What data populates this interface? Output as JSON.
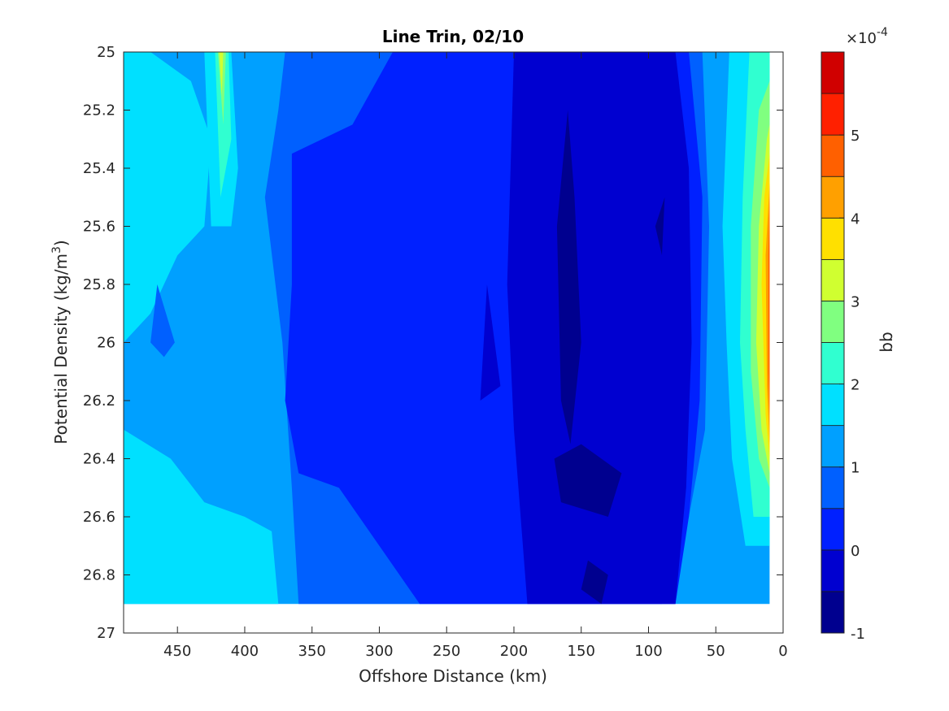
{
  "chart_data": {
    "type": "heatmap",
    "subtype": "filled-contour",
    "title": "Line Trin, 02/10",
    "xlabel": "Offshore Distance (km)",
    "ylabel_main": "Potential Density (kg/m",
    "ylabel_sup": "3",
    "ylabel_close": ")",
    "x_reversed": true,
    "y_reversed": true,
    "xlim": [
      0,
      490
    ],
    "ylim": [
      25.0,
      27.0
    ],
    "xticks": [
      450,
      400,
      350,
      300,
      250,
      200,
      150,
      100,
      50,
      0
    ],
    "xtick_labels": [
      "450",
      "400",
      "350",
      "300",
      "250",
      "200",
      "150",
      "100",
      "50",
      "0"
    ],
    "yticks": [
      25.0,
      25.2,
      25.4,
      25.6,
      25.8,
      26.0,
      26.2,
      26.4,
      26.6,
      26.8,
      27.0
    ],
    "ytick_labels": [
      "25",
      "25.2",
      "25.4",
      "25.6",
      "25.8",
      "26",
      "26.2",
      "26.4",
      "26.6",
      "26.8",
      "27"
    ],
    "data_extent": {
      "x": [
        10,
        490
      ],
      "y": [
        25.0,
        26.9
      ]
    },
    "colorbar": {
      "label": "bb",
      "exponent_prefix": "×10",
      "exponent": "-4",
      "range": [
        -1,
        6
      ],
      "ticks": [
        -1,
        0,
        1,
        2,
        3,
        4,
        5
      ],
      "tick_labels": [
        "-1",
        "0",
        "1",
        "2",
        "3",
        "4",
        "5"
      ],
      "levels": [
        -1,
        -0.5,
        0,
        0.5,
        1,
        1.5,
        2,
        2.5,
        3,
        3.5,
        4,
        4.5,
        5,
        5.5,
        6
      ],
      "colors": [
        "#00008f",
        "#0000d0",
        "#0020ff",
        "#0060ff",
        "#00a0ff",
        "#00e0ff",
        "#30ffd0",
        "#80ff80",
        "#d0ff30",
        "#ffe000",
        "#ffa000",
        "#ff6000",
        "#ff2000",
        "#d00000"
      ]
    },
    "regions": [
      {
        "band": 4,
        "polygon": [
          [
            490,
            25.0
          ],
          [
            10,
            25.0
          ],
          [
            10,
            26.9
          ],
          [
            490,
            26.9
          ]
        ]
      },
      {
        "band": 5,
        "polygon": [
          [
            490,
            25.0
          ],
          [
            470,
            25.0
          ],
          [
            440,
            25.1
          ],
          [
            425,
            25.3
          ],
          [
            430,
            25.6
          ],
          [
            450,
            25.7
          ],
          [
            470,
            25.9
          ],
          [
            490,
            26.0
          ]
        ]
      },
      {
        "band": 5,
        "polygon": [
          [
            490,
            26.3
          ],
          [
            455,
            26.4
          ],
          [
            430,
            26.55
          ],
          [
            400,
            26.6
          ],
          [
            380,
            26.65
          ],
          [
            375,
            26.9
          ],
          [
            490,
            26.9
          ]
        ]
      },
      {
        "band": 5,
        "polygon": [
          [
            40,
            25.0
          ],
          [
            10,
            25.0
          ],
          [
            10,
            26.7
          ],
          [
            28,
            26.7
          ],
          [
            38,
            26.4
          ],
          [
            42,
            26.0
          ],
          [
            45,
            25.6
          ]
        ]
      },
      {
        "band": 5,
        "polygon": [
          [
            430,
            25.0
          ],
          [
            410,
            25.0
          ],
          [
            405,
            25.4
          ],
          [
            410,
            25.6
          ],
          [
            425,
            25.6
          ]
        ]
      },
      {
        "band": 6,
        "polygon": [
          [
            25,
            25.0
          ],
          [
            10,
            25.0
          ],
          [
            10,
            26.6
          ],
          [
            22,
            26.6
          ],
          [
            28,
            26.3
          ],
          [
            32,
            26.0
          ],
          [
            30,
            25.5
          ]
        ]
      },
      {
        "band": 6,
        "polygon": [
          [
            422,
            25.0
          ],
          [
            412,
            25.0
          ],
          [
            410,
            25.3
          ],
          [
            418,
            25.5
          ]
        ]
      },
      {
        "band": 7,
        "polygon": [
          [
            18,
            25.2
          ],
          [
            10,
            25.1
          ],
          [
            10,
            26.5
          ],
          [
            18,
            26.4
          ],
          [
            24,
            26.1
          ],
          [
            24,
            25.6
          ]
        ]
      },
      {
        "band": 7,
        "polygon": [
          [
            420,
            25.0
          ],
          [
            414,
            25.0
          ],
          [
            416,
            25.25
          ]
        ]
      },
      {
        "band": 8,
        "polygon": [
          [
            12,
            25.3
          ],
          [
            10,
            25.25
          ],
          [
            10,
            26.45
          ],
          [
            16,
            26.3
          ],
          [
            20,
            26.0
          ],
          [
            18,
            25.6
          ]
        ]
      },
      {
        "band": 8,
        "polygon": [
          [
            419,
            25.0
          ],
          [
            416,
            25.0
          ],
          [
            417,
            25.15
          ]
        ]
      },
      {
        "band": 9,
        "polygon": [
          [
            10,
            25.35
          ],
          [
            10,
            26.4
          ],
          [
            13,
            26.25
          ],
          [
            16,
            25.8
          ],
          [
            14,
            25.5
          ]
        ]
      },
      {
        "band": 10,
        "polygon": [
          [
            10,
            25.45
          ],
          [
            10,
            26.35
          ],
          [
            12,
            26.15
          ],
          [
            13,
            25.7
          ]
        ]
      },
      {
        "band": 11,
        "polygon": [
          [
            10,
            25.5
          ],
          [
            10,
            26.25
          ],
          [
            11,
            26.1
          ],
          [
            11,
            25.7
          ]
        ]
      },
      {
        "band": 3,
        "polygon": [
          [
            370,
            25.0
          ],
          [
            60,
            25.0
          ],
          [
            55,
            25.6
          ],
          [
            58,
            26.3
          ],
          [
            70,
            26.6
          ],
          [
            90,
            26.9
          ],
          [
            360,
            26.9
          ],
          [
            365,
            26.5
          ],
          [
            372,
            26.0
          ],
          [
            385,
            25.5
          ],
          [
            375,
            25.2
          ]
        ]
      },
      {
        "band": 3,
        "polygon": [
          [
            465,
            25.8
          ],
          [
            452,
            26.0
          ],
          [
            460,
            26.05
          ],
          [
            470,
            26.0
          ]
        ]
      },
      {
        "band": 2,
        "polygon": [
          [
            365,
            25.35
          ],
          [
            320,
            25.25
          ],
          [
            290,
            25.0
          ],
          [
            70,
            25.0
          ],
          [
            60,
            25.5
          ],
          [
            62,
            26.2
          ],
          [
            70,
            26.6
          ],
          [
            80,
            26.9
          ],
          [
            270,
            26.9
          ],
          [
            300,
            26.7
          ],
          [
            330,
            26.5
          ],
          [
            360,
            26.45
          ],
          [
            370,
            26.2
          ],
          [
            365,
            25.8
          ]
        ]
      },
      {
        "band": 1,
        "polygon": [
          [
            200,
            25.0
          ],
          [
            80,
            25.0
          ],
          [
            70,
            25.4
          ],
          [
            68,
            26.0
          ],
          [
            72,
            26.5
          ],
          [
            80,
            26.9
          ],
          [
            190,
            26.9
          ],
          [
            200,
            26.3
          ],
          [
            205,
            25.8
          ]
        ]
      },
      {
        "band": 1,
        "polygon": [
          [
            220,
            25.8
          ],
          [
            210,
            26.15
          ],
          [
            225,
            26.2
          ]
        ]
      },
      {
        "band": 0,
        "polygon": [
          [
            160,
            25.2
          ],
          [
            168,
            25.6
          ],
          [
            165,
            26.2
          ],
          [
            158,
            26.35
          ],
          [
            150,
            26.0
          ],
          [
            155,
            25.5
          ]
        ]
      },
      {
        "band": 0,
        "polygon": [
          [
            170,
            26.4
          ],
          [
            150,
            26.35
          ],
          [
            120,
            26.45
          ],
          [
            130,
            26.6
          ],
          [
            165,
            26.55
          ]
        ]
      },
      {
        "band": 0,
        "polygon": [
          [
            145,
            26.75
          ],
          [
            130,
            26.8
          ],
          [
            135,
            26.9
          ],
          [
            150,
            26.85
          ]
        ]
      },
      {
        "band": 0,
        "polygon": [
          [
            95,
            25.6
          ],
          [
            88,
            25.5
          ],
          [
            90,
            25.7
          ]
        ]
      }
    ]
  }
}
